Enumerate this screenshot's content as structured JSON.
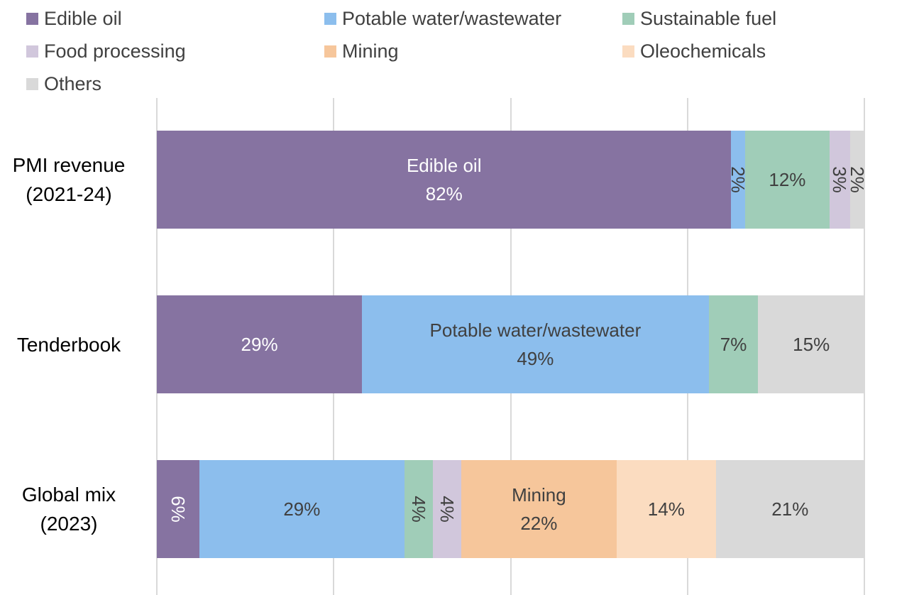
{
  "chart_data": {
    "type": "bar",
    "orientation": "horizontal",
    "stacked": "100%",
    "title": "",
    "xlabel": "",
    "ylabel": "",
    "xlim": [
      0,
      100
    ],
    "grid": true,
    "legend_position": "top",
    "categories": [
      {
        "line1": "PMI revenue",
        "line2": "(2021-24)"
      },
      {
        "line1": "Tenderbook",
        "line2": ""
      },
      {
        "line1": "Global mix",
        "line2": "(2023)"
      }
    ],
    "series": [
      {
        "name": "Edible oil",
        "color": "#8673A1",
        "label_color": "#ffffff",
        "values": [
          82,
          29,
          6
        ]
      },
      {
        "name": "Potable water/wastewater",
        "color": "#8CBEED",
        "label_color": "#404040",
        "values": [
          2,
          49,
          29
        ]
      },
      {
        "name": "Sustainable fuel",
        "color": "#A0CDB8",
        "label_color": "#404040",
        "values": [
          12,
          7,
          4
        ]
      },
      {
        "name": "Food processing",
        "color": "#D1C7DC",
        "label_color": "#404040",
        "values": [
          3,
          0,
          4
        ]
      },
      {
        "name": "Mining",
        "color": "#F6C69B",
        "label_color": "#404040",
        "values": [
          0,
          0,
          22
        ]
      },
      {
        "name": "Oleochemicals",
        "color": "#FBDCC0",
        "label_color": "#404040",
        "values": [
          0,
          0,
          14
        ]
      },
      {
        "name": "Others",
        "color": "#D9D9D9",
        "label_color": "#404040",
        "values": [
          2,
          15,
          21
        ]
      }
    ],
    "data_labels": [
      [
        "Edible oil|82%",
        "2%",
        "12%",
        "3%",
        "",
        "",
        "2%"
      ],
      [
        "29%",
        "Potable water/wastewater|49%",
        "7%",
        "",
        "",
        "",
        "15%"
      ],
      [
        "6%",
        "29%",
        "4%",
        "4%",
        "Mining|22%",
        "14%",
        "21%"
      ]
    ]
  }
}
